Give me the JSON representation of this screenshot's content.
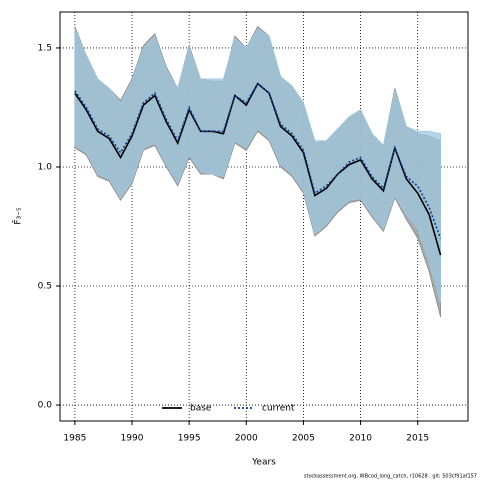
{
  "chart_data": {
    "type": "line",
    "ylabel": "F̄₃₋₅",
    "xlabel": "Years",
    "caption": "stockassessment.org, WBcod_long_catch, r10628 , git: 503cf91af157",
    "x": [
      1985,
      1986,
      1987,
      1988,
      1989,
      1990,
      1991,
      1992,
      1993,
      1994,
      1995,
      1996,
      1997,
      1998,
      1999,
      2000,
      2001,
      2002,
      2003,
      2004,
      2005,
      2006,
      2007,
      2008,
      2009,
      2010,
      2011,
      2012,
      2013,
      2014,
      2015,
      2016,
      2017
    ],
    "series": [
      {
        "name": "base",
        "color": "#000000",
        "band_color": "#8c8c8c",
        "dash": false,
        "values": [
          1.31,
          1.24,
          1.15,
          1.12,
          1.04,
          1.13,
          1.26,
          1.3,
          1.19,
          1.1,
          1.24,
          1.15,
          1.15,
          1.14,
          1.3,
          1.26,
          1.35,
          1.31,
          1.17,
          1.13,
          1.06,
          0.88,
          0.91,
          0.97,
          1.01,
          1.03,
          0.95,
          0.9,
          1.08,
          0.95,
          0.89,
          0.8,
          0.63
        ],
        "upper": [
          1.59,
          1.47,
          1.37,
          1.33,
          1.28,
          1.37,
          1.51,
          1.56,
          1.42,
          1.33,
          1.51,
          1.37,
          1.36,
          1.36,
          1.55,
          1.5,
          1.59,
          1.55,
          1.38,
          1.34,
          1.27,
          1.1,
          1.11,
          1.16,
          1.21,
          1.24,
          1.14,
          1.09,
          1.33,
          1.17,
          1.14,
          1.13,
          1.11
        ],
        "lower": [
          1.08,
          1.05,
          0.96,
          0.94,
          0.86,
          0.93,
          1.07,
          1.09,
          1.0,
          0.92,
          1.04,
          0.97,
          0.97,
          0.95,
          1.1,
          1.07,
          1.15,
          1.11,
          1.0,
          0.96,
          0.89,
          0.71,
          0.75,
          0.81,
          0.85,
          0.86,
          0.79,
          0.73,
          0.87,
          0.78,
          0.7,
          0.56,
          0.37
        ]
      },
      {
        "name": "current",
        "color": "#0b3d91",
        "band_color": "#9ec8e0",
        "dash": true,
        "values": [
          1.32,
          1.25,
          1.16,
          1.13,
          1.06,
          1.14,
          1.27,
          1.31,
          1.2,
          1.11,
          1.25,
          1.15,
          1.15,
          1.15,
          1.3,
          1.27,
          1.35,
          1.31,
          1.18,
          1.14,
          1.07,
          0.89,
          0.92,
          0.97,
          1.02,
          1.04,
          0.96,
          0.91,
          1.08,
          0.96,
          0.92,
          0.83,
          0.7
        ],
        "upper": [
          1.58,
          1.47,
          1.37,
          1.33,
          1.27,
          1.36,
          1.5,
          1.55,
          1.41,
          1.33,
          1.5,
          1.37,
          1.37,
          1.37,
          1.54,
          1.5,
          1.58,
          1.55,
          1.38,
          1.34,
          1.27,
          1.11,
          1.11,
          1.16,
          1.21,
          1.24,
          1.14,
          1.09,
          1.32,
          1.17,
          1.15,
          1.15,
          1.14
        ],
        "lower": [
          1.09,
          1.06,
          0.97,
          0.95,
          0.87,
          0.94,
          1.08,
          1.1,
          1.01,
          0.93,
          1.05,
          0.98,
          0.97,
          0.96,
          1.11,
          1.08,
          1.16,
          1.12,
          1.01,
          0.97,
          0.9,
          0.72,
          0.76,
          0.82,
          0.86,
          0.87,
          0.8,
          0.74,
          0.88,
          0.8,
          0.74,
          0.6,
          0.43
        ]
      }
    ],
    "xlim": [
      1983.7,
      2019.4
    ],
    "ylim": [
      -0.067,
      1.651
    ],
    "xticks": [
      1985,
      1990,
      1995,
      2000,
      2005,
      2010,
      2015
    ],
    "yticks": [
      {
        "value": 0,
        "label": "0.0"
      },
      0.5,
      {
        "value": 1,
        "label": "1.0"
      },
      1.5
    ],
    "grid": true,
    "legend": "bottom"
  }
}
